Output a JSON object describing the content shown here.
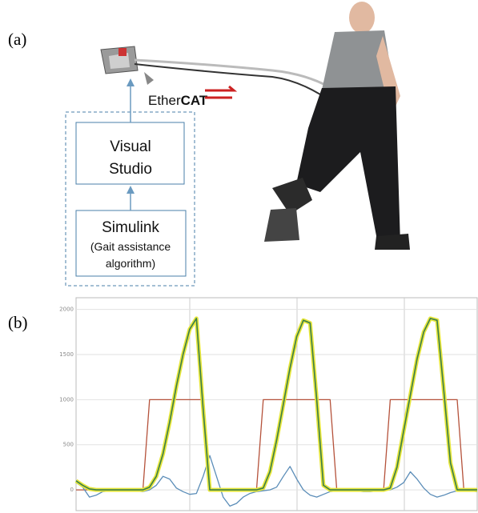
{
  "diagram": {
    "label": "(a)",
    "ethercat_light": "Ether",
    "ethercat_bold": "CAT",
    "visual_studio": [
      "Visual",
      "Studio"
    ],
    "simulink": "Simulink",
    "simulink_note": [
      "(Gait assistance",
      "algorithm)"
    ]
  },
  "chart_label": "(b)",
  "chart_data": {
    "type": "line",
    "ylim": [
      -230,
      2130
    ],
    "yticks": [
      0,
      500,
      1000,
      1500,
      2000
    ],
    "grid": true,
    "series": [
      {
        "color": "#b5523b",
        "values": [
          0,
          0,
          0,
          0,
          0,
          0,
          0,
          0,
          0,
          0,
          0,
          1000,
          1000,
          1000,
          1000,
          1000,
          1000,
          1000,
          1000,
          1000,
          0,
          0,
          0,
          0,
          0,
          0,
          0,
          0,
          1000,
          1000,
          1000,
          1000,
          1000,
          1000,
          1000,
          1000,
          1000,
          1000,
          1000,
          0,
          0,
          0,
          0,
          0,
          0,
          0,
          0,
          1000,
          1000,
          1000,
          1000,
          1000,
          1000,
          1000,
          1000,
          1000,
          1000,
          1000,
          0,
          0,
          0
        ]
      },
      {
        "color": "#5b8db8",
        "values": [
          80,
          30,
          -80,
          -60,
          -20,
          -10,
          0,
          0,
          0,
          -10,
          -20,
          0,
          50,
          150,
          120,
          20,
          -20,
          -50,
          -40,
          150,
          380,
          150,
          -80,
          -180,
          -150,
          -80,
          -40,
          -20,
          -10,
          0,
          30,
          150,
          260,
          120,
          0,
          -60,
          -80,
          -50,
          -20,
          -10,
          0,
          0,
          -10,
          -20,
          -20,
          -10,
          0,
          0,
          30,
          80,
          200,
          120,
          20,
          -50,
          -80,
          -60,
          -30,
          -10,
          0,
          -10,
          -20
        ]
      },
      {
        "color": "#3a7d4a",
        "halo": "#e6e63c",
        "values": [
          100,
          50,
          10,
          0,
          0,
          0,
          0,
          0,
          0,
          0,
          0,
          30,
          150,
          400,
          750,
          1150,
          1500,
          1780,
          1900,
          900,
          0,
          0,
          0,
          0,
          0,
          0,
          0,
          0,
          20,
          200,
          550,
          950,
          1350,
          1700,
          1880,
          1850,
          1000,
          50,
          0,
          0,
          0,
          0,
          0,
          0,
          0,
          0,
          0,
          20,
          250,
          650,
          1050,
          1450,
          1750,
          1900,
          1880,
          1100,
          300,
          0,
          0,
          0,
          0
        ]
      }
    ]
  }
}
